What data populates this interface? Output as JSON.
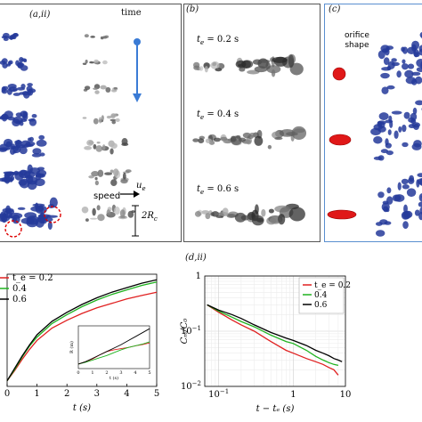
{
  "panels": {
    "a_ii": {
      "label": "(a,ii)"
    },
    "b": {
      "label": "(b)"
    },
    "c": {
      "label": "(c)"
    },
    "d_ii": {
      "label": "(d,ii)"
    }
  },
  "time_arrow": {
    "label": "time"
  },
  "speed": {
    "label": "speed",
    "symbol": "u",
    "sub": "e",
    "radius": "2R",
    "radius_sub": "c"
  },
  "b_times": [
    {
      "prefix": "t",
      "sub": "e",
      "text": " = 0.2 s"
    },
    {
      "prefix": "t",
      "sub": "e",
      "text": " = 0.4 s"
    },
    {
      "prefix": "t",
      "sub": "e",
      "text": " = 0.6 s"
    }
  ],
  "c": {
    "title_line1": "orifice",
    "title_line2": "shape"
  },
  "colors": {
    "red": "#e02020",
    "green": "#1fb31f",
    "black": "#000000",
    "blob": "#243a9a"
  },
  "chart_data": [
    {
      "type": "line",
      "panel": "d,i (left)",
      "xlabel": "t (s)",
      "ylabel": "",
      "xlim": [
        0,
        5
      ],
      "xticks": [
        "0",
        "1",
        "2",
        "3",
        "4",
        "5"
      ],
      "legend": {
        "placement": "top-left",
        "entries": [
          "0.2",
          "0.4",
          "0.6"
        ],
        "first_prefix": "t_e = "
      },
      "x": [
        0,
        0.25,
        0.5,
        0.75,
        1,
        1.5,
        2,
        2.5,
        3,
        3.5,
        4,
        4.5,
        5
      ],
      "series": [
        {
          "name": "0.2",
          "color": "#e02020",
          "values": [
            0.05,
            0.14,
            0.24,
            0.33,
            0.41,
            0.52,
            0.59,
            0.65,
            0.7,
            0.74,
            0.78,
            0.81,
            0.84
          ]
        },
        {
          "name": "0.4",
          "color": "#1fb31f",
          "values": [
            0.05,
            0.15,
            0.26,
            0.36,
            0.44,
            0.56,
            0.64,
            0.71,
            0.77,
            0.82,
            0.86,
            0.9,
            0.93
          ]
        },
        {
          "name": "0.6",
          "color": "#000000",
          "values": [
            0.05,
            0.16,
            0.27,
            0.37,
            0.46,
            0.58,
            0.66,
            0.73,
            0.79,
            0.84,
            0.88,
            0.92,
            0.95
          ]
        }
      ],
      "inset": {
        "xlabel": "t (s)",
        "ylabel": "R (m)",
        "xticks": [
          "0",
          "1",
          "2",
          "3",
          "4",
          "5"
        ],
        "x": [
          0,
          0.5,
          1,
          1.5,
          2,
          2.5,
          3,
          3.5,
          4,
          4.5,
          5
        ],
        "series": [
          {
            "name": "0.2",
            "color": "#e02020",
            "values": [
              0.08,
              0.12,
              0.17,
              0.24,
              0.3,
              0.33,
              0.35,
              0.37,
              0.4,
              0.42,
              0.45
            ]
          },
          {
            "name": "0.4",
            "color": "#1fb31f",
            "values": [
              0.08,
              0.11,
              0.15,
              0.19,
              0.23,
              0.28,
              0.33,
              0.37,
              0.4,
              0.43,
              0.47
            ]
          },
          {
            "name": "0.6",
            "color": "#000000",
            "values": [
              0.08,
              0.12,
              0.18,
              0.24,
              0.3,
              0.36,
              0.42,
              0.49,
              0.56,
              0.63,
              0.7
            ]
          }
        ]
      }
    },
    {
      "type": "line",
      "panel": "d,ii",
      "xlabel": "t − t_e (s)",
      "ylabel": "C_m/C_0",
      "log_x": true,
      "log_y": true,
      "xlim": [
        0.065,
        5
      ],
      "ylim": [
        0.01,
        1
      ],
      "xticks": [
        {
          "v": 0.1,
          "base": "10",
          "exp": "−1"
        },
        {
          "v": 1,
          "base": "1",
          "exp": ""
        },
        {
          "v": 10,
          "base": "10",
          "exp": ""
        }
      ],
      "yticks": [
        {
          "v": 1,
          "base": "1",
          "exp": ""
        },
        {
          "v": 0.1,
          "base": "10",
          "exp": "−1"
        },
        {
          "v": 0.01,
          "base": "10",
          "exp": "−2"
        }
      ],
      "legend": {
        "placement": "top-right",
        "entries": [
          "0.2",
          "0.4",
          "0.6"
        ],
        "first_prefix": "t_e = "
      },
      "series": [
        {
          "name": "0.2",
          "color": "#e02020",
          "x": [
            0.07,
            0.1,
            0.15,
            0.2,
            0.3,
            0.5,
            0.8,
            1.0,
            1.5,
            2.0,
            2.5,
            3.0,
            3.5,
            4.0
          ],
          "values": [
            0.3,
            0.22,
            0.16,
            0.13,
            0.1,
            0.065,
            0.045,
            0.04,
            0.032,
            0.028,
            0.025,
            0.022,
            0.02,
            0.016
          ]
        },
        {
          "name": "0.4",
          "color": "#1fb31f",
          "x": [
            0.07,
            0.1,
            0.15,
            0.2,
            0.3,
            0.5,
            0.8,
            1.0,
            1.5,
            2.0,
            2.5,
            3.0,
            3.5,
            4.0
          ],
          "values": [
            0.3,
            0.23,
            0.18,
            0.15,
            0.12,
            0.085,
            0.065,
            0.06,
            0.045,
            0.035,
            0.03,
            0.027,
            0.025,
            0.024
          ]
        },
        {
          "name": "0.6",
          "color": "#000000",
          "x": [
            0.07,
            0.1,
            0.15,
            0.2,
            0.3,
            0.5,
            0.8,
            1.0,
            1.5,
            2.0,
            2.5,
            3.0,
            3.5,
            4.0,
            4.5
          ],
          "values": [
            0.3,
            0.24,
            0.2,
            0.17,
            0.13,
            0.095,
            0.075,
            0.068,
            0.055,
            0.045,
            0.04,
            0.036,
            0.032,
            0.03,
            0.028
          ]
        }
      ]
    }
  ]
}
